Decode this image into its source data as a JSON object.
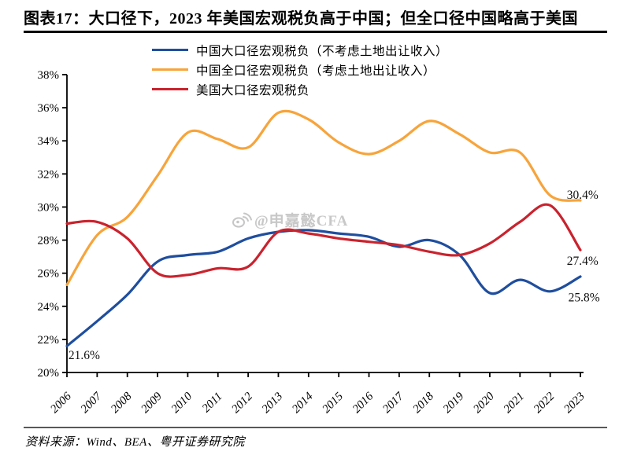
{
  "title": "图表17：大口径下，2023 年美国宏观税负高于中国；但全口径中国略高于美国",
  "source_note": "资料来源：Wind、BEA、粤开证券研究院",
  "watermark": {
    "icon": "weibo-icon",
    "text": "@申嘉懿CFA"
  },
  "colors": {
    "china_large": "#1F4E9E",
    "china_full": "#F7A43B",
    "us_large": "#C9232E",
    "axis": "#000000",
    "watermark": "#C3C3C3"
  },
  "chart_data": {
    "type": "line",
    "x": [
      2006,
      2007,
      2008,
      2009,
      2010,
      2011,
      2012,
      2013,
      2014,
      2015,
      2016,
      2017,
      2018,
      2019,
      2020,
      2021,
      2022,
      2023
    ],
    "series": [
      {
        "name": "中国大口径宏观税负（不考虑土地出让收入）",
        "color": "#1F4E9E",
        "values": [
          21.6,
          23.1,
          24.7,
          26.7,
          27.1,
          27.3,
          28.1,
          28.5,
          28.6,
          28.4,
          28.2,
          27.6,
          28.0,
          27.1,
          24.8,
          25.6,
          24.9,
          25.8
        ]
      },
      {
        "name": "中国全口径宏观税负（考虑土地出让收入）",
        "color": "#F7A43B",
        "values": [
          25.3,
          28.3,
          29.4,
          31.9,
          34.5,
          34.1,
          33.6,
          35.7,
          35.3,
          33.9,
          33.2,
          34.0,
          35.2,
          34.4,
          33.3,
          33.3,
          30.7,
          30.4
        ]
      },
      {
        "name": "美国大口径宏观税负",
        "color": "#C9232E",
        "values": [
          29.0,
          29.1,
          28.1,
          26.0,
          25.9,
          26.3,
          26.4,
          28.5,
          28.4,
          28.1,
          27.9,
          27.7,
          27.3,
          27.1,
          27.8,
          29.1,
          30.1,
          27.4
        ]
      }
    ],
    "ylim": [
      20,
      38
    ],
    "ytick_step": 2,
    "ytick_format": "percent",
    "xlabel": "",
    "ylabel": "",
    "grid": false,
    "legend_position": "top",
    "annotations": [
      {
        "label": "21.6%",
        "x_year": 2006.05,
        "y_value": 20.8
      },
      {
        "label": "30.4%",
        "x_year": 2022.55,
        "y_value": 30.5
      },
      {
        "label": "27.4%",
        "x_year": 2022.55,
        "y_value": 26.5
      },
      {
        "label": "25.8%",
        "x_year": 2022.6,
        "y_value": 24.3
      }
    ]
  }
}
